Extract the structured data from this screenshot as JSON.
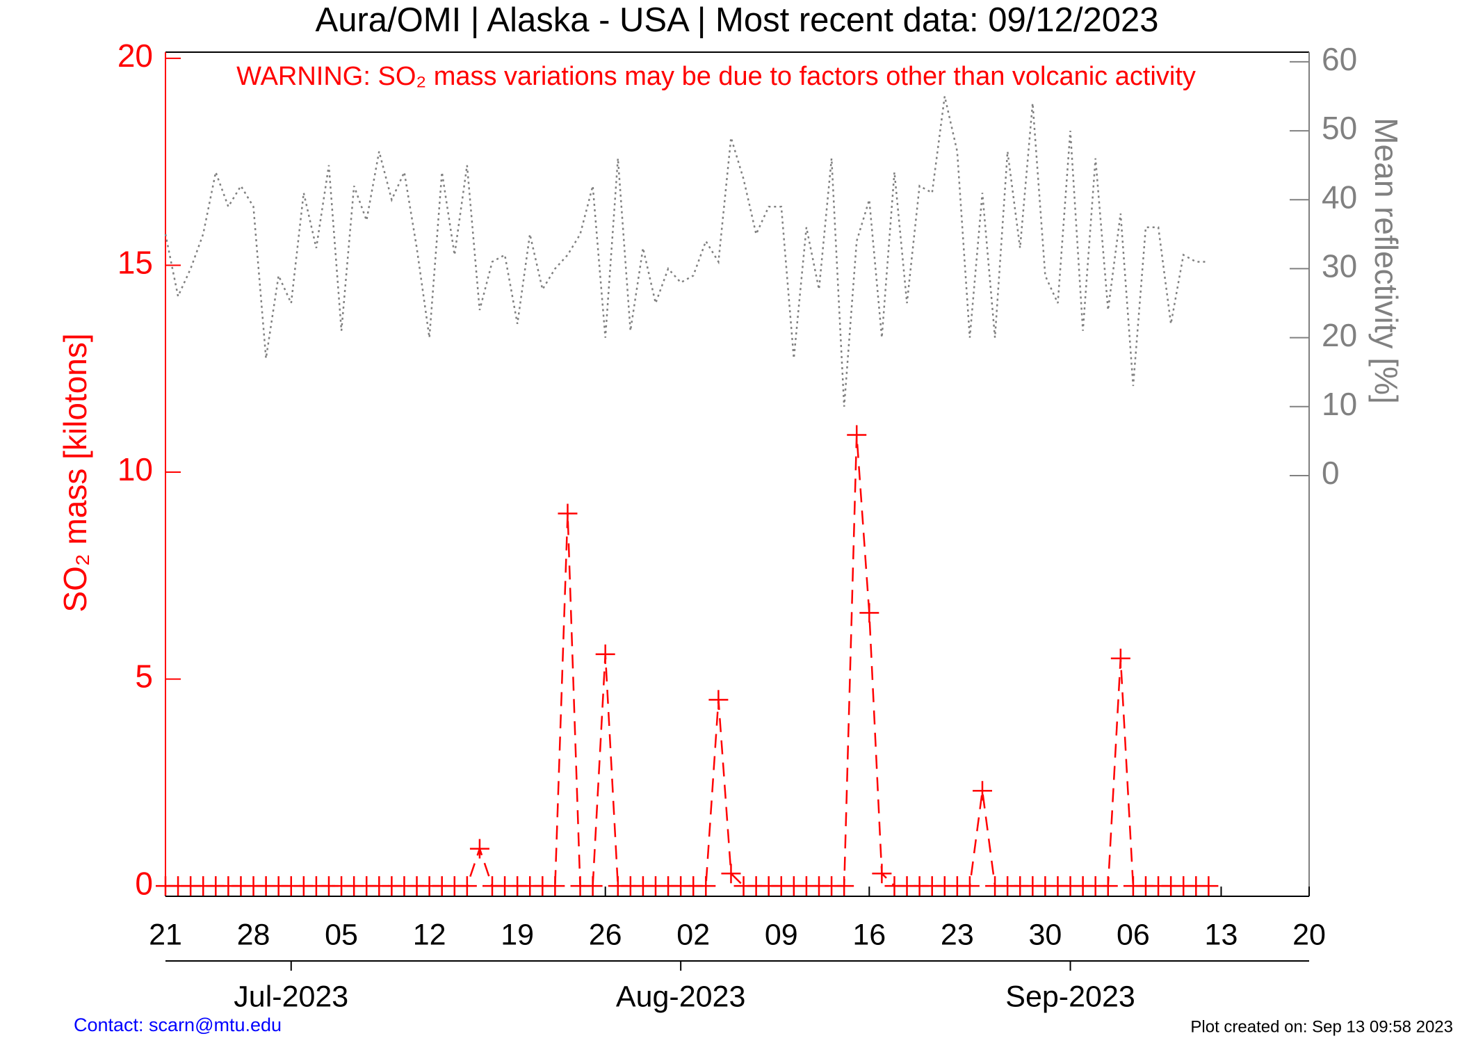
{
  "chart_data": {
    "type": "line",
    "title": "Aura/OMI | Alaska - USA | Most recent data: 09/12/2023",
    "annotation": "WARNING: SO₂ mass variations may be due to factors other than volcanic activity",
    "ylabel": "SO₂ mass [kilotons]",
    "y2label": "Mean reflectivity [%]",
    "contact": "Contact: scarn@mtu.edu",
    "created": "Plot created on: Sep 13 09:58 2023",
    "xlim": [
      "2023-06-21",
      "2023-09-20"
    ],
    "xticks": [
      {
        "value": "2023-06-21",
        "label": "21"
      },
      {
        "value": "2023-06-28",
        "label": "28"
      },
      {
        "value": "2023-07-05",
        "label": "05"
      },
      {
        "value": "2023-07-12",
        "label": "12"
      },
      {
        "value": "2023-07-19",
        "label": "19"
      },
      {
        "value": "2023-07-26",
        "label": "26"
      },
      {
        "value": "2023-08-02",
        "label": "02"
      },
      {
        "value": "2023-08-09",
        "label": "09"
      },
      {
        "value": "2023-08-16",
        "label": "16"
      },
      {
        "value": "2023-08-23",
        "label": "23"
      },
      {
        "value": "2023-08-30",
        "label": "30"
      },
      {
        "value": "2023-09-06",
        "label": "06"
      },
      {
        "value": "2023-09-13",
        "label": "13"
      },
      {
        "value": "2023-09-20",
        "label": "20"
      }
    ],
    "month_ticks": [
      {
        "value": "2023-07-01",
        "label": "Jul-2023"
      },
      {
        "value": "2023-08-01",
        "label": "Aug-2023"
      },
      {
        "value": "2023-09-01",
        "label": "Sep-2023"
      }
    ],
    "ylim": [
      -0.25,
      20.15
    ],
    "yticks": [
      0,
      5,
      10,
      15,
      20
    ],
    "y2lim": [
      -61,
      61.4
    ],
    "y2ticks": [
      0,
      10,
      20,
      30,
      40,
      50,
      60
    ],
    "x": [
      "2023-06-21",
      "2023-06-22",
      "2023-06-23",
      "2023-06-24",
      "2023-06-25",
      "2023-06-26",
      "2023-06-27",
      "2023-06-28",
      "2023-06-29",
      "2023-06-30",
      "2023-07-01",
      "2023-07-02",
      "2023-07-03",
      "2023-07-04",
      "2023-07-05",
      "2023-07-06",
      "2023-07-07",
      "2023-07-08",
      "2023-07-09",
      "2023-07-10",
      "2023-07-11",
      "2023-07-12",
      "2023-07-13",
      "2023-07-14",
      "2023-07-15",
      "2023-07-16",
      "2023-07-17",
      "2023-07-18",
      "2023-07-19",
      "2023-07-20",
      "2023-07-21",
      "2023-07-22",
      "2023-07-23",
      "2023-07-24",
      "2023-07-25",
      "2023-07-26",
      "2023-07-27",
      "2023-07-28",
      "2023-07-29",
      "2023-07-30",
      "2023-07-31",
      "2023-08-01",
      "2023-08-02",
      "2023-08-03",
      "2023-08-04",
      "2023-08-05",
      "2023-08-06",
      "2023-08-07",
      "2023-08-08",
      "2023-08-09",
      "2023-08-10",
      "2023-08-11",
      "2023-08-12",
      "2023-08-13",
      "2023-08-14",
      "2023-08-15",
      "2023-08-16",
      "2023-08-17",
      "2023-08-18",
      "2023-08-19",
      "2023-08-20",
      "2023-08-21",
      "2023-08-22",
      "2023-08-23",
      "2023-08-24",
      "2023-08-25",
      "2023-08-26",
      "2023-08-27",
      "2023-08-28",
      "2023-08-29",
      "2023-08-30",
      "2023-08-31",
      "2023-09-01",
      "2023-09-02",
      "2023-09-03",
      "2023-09-04",
      "2023-09-05",
      "2023-09-06",
      "2023-09-07",
      "2023-09-08",
      "2023-09-09",
      "2023-09-10",
      "2023-09-11",
      "2023-09-12"
    ],
    "series": [
      {
        "name": "SO₂ mass",
        "color": "#ff0000",
        "axis": "y",
        "values": [
          0,
          0,
          0,
          0,
          0,
          0,
          0,
          0,
          0,
          0,
          0,
          0,
          0,
          0,
          0,
          0,
          0,
          0,
          0,
          0,
          0,
          0,
          0,
          0,
          0,
          0.9,
          0,
          0,
          0,
          0,
          0,
          0,
          9.0,
          0,
          0,
          5.6,
          0,
          0,
          0,
          0,
          0,
          0,
          0,
          0,
          4.5,
          0.3,
          0,
          0,
          0,
          0,
          0,
          0,
          0,
          0,
          0,
          10.9,
          6.6,
          0.3,
          0,
          0,
          0,
          0,
          0,
          0,
          0,
          2.3,
          0,
          0,
          0,
          0,
          0,
          0,
          0,
          0,
          0,
          0,
          5.5,
          0,
          0,
          0,
          0,
          0,
          0,
          0
        ]
      },
      {
        "name": "Mean reflectivity",
        "color": "#808080",
        "axis": "y2",
        "values": [
          35,
          26,
          30,
          35,
          44,
          39,
          42,
          39,
          17,
          29,
          25,
          41,
          33,
          45,
          21,
          42,
          37,
          47,
          40,
          44,
          33,
          20,
          44,
          32,
          45,
          24,
          31,
          32,
          22,
          35,
          27,
          30,
          32,
          35,
          42,
          20,
          46,
          21,
          33,
          25,
          30,
          28,
          29,
          34,
          31,
          49,
          43,
          35,
          39,
          39,
          17,
          36,
          27,
          46,
          10,
          34,
          40,
          20,
          44,
          25,
          42,
          41,
          55,
          47,
          20,
          41,
          20,
          47,
          33,
          54,
          29,
          25,
          50,
          21,
          46,
          24,
          38,
          13,
          36,
          36,
          22,
          32,
          31,
          31
        ]
      }
    ]
  }
}
